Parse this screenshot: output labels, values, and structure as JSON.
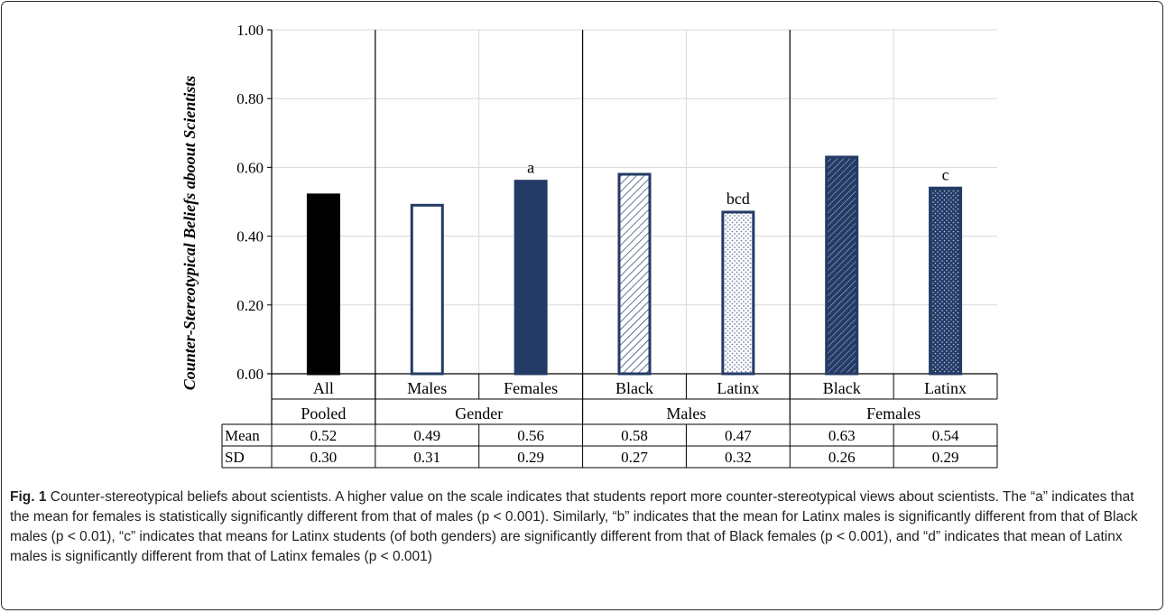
{
  "chart_data": {
    "type": "bar",
    "ylabel": "Counter-Stereotypical Beliefs aboout Scientists",
    "ylim": [
      0,
      1
    ],
    "yticks": [
      "0.00",
      "0.20",
      "0.40",
      "0.60",
      "0.80",
      "1.00"
    ],
    "ytick_values": [
      0,
      0.2,
      0.4,
      0.6,
      0.8,
      1.0
    ],
    "grid": true,
    "categories": [
      "All",
      "Males",
      "Females",
      "Black",
      "Latinx",
      "Black",
      "Latinx"
    ],
    "groups": [
      {
        "label": "Pooled",
        "span": 1
      },
      {
        "label": "Gender",
        "span": 2
      },
      {
        "label": "Males",
        "span": 2
      },
      {
        "label": "Females",
        "span": 2
      }
    ],
    "values": [
      0.52,
      0.49,
      0.56,
      0.58,
      0.47,
      0.63,
      0.54
    ],
    "annotations": [
      "",
      "",
      "a",
      "",
      "bcd",
      "",
      "c"
    ],
    "bar_styles": [
      "solid-black",
      "outline-navy",
      "solid-navy",
      "hatch-light",
      "dots-light",
      "hatch-navy",
      "dots-navy"
    ],
    "colors": {
      "black": "#000000",
      "navy": "#243b66",
      "grid": "#d9d9d9"
    },
    "table": {
      "rows": [
        {
          "label": "Mean",
          "values": [
            "0.52",
            "0.49",
            "0.56",
            "0.58",
            "0.47",
            "0.63",
            "0.54"
          ]
        },
        {
          "label": "SD",
          "values": [
            "0.30",
            "0.31",
            "0.29",
            "0.27",
            "0.32",
            "0.26",
            "0.29"
          ]
        }
      ]
    }
  },
  "caption": {
    "label": "Fig. 1",
    "text": " Counter-stereotypical beliefs about scientists. A higher value on the scale indicates that students report more counter-stereotypical views about scientists. The “a” indicates that the mean for females is statistically significantly different from that of males (p < 0.001). Similarly, “b” indicates that the mean for Latinx males is significantly different from that of Black males (p < 0.01), “c” indicates that means for Latinx students (of both genders) are significantly different from that of Black females (p < 0.001), and “d” indicates that mean of Latinx males is significantly different from that of Latinx females (p < 0.001)"
  }
}
